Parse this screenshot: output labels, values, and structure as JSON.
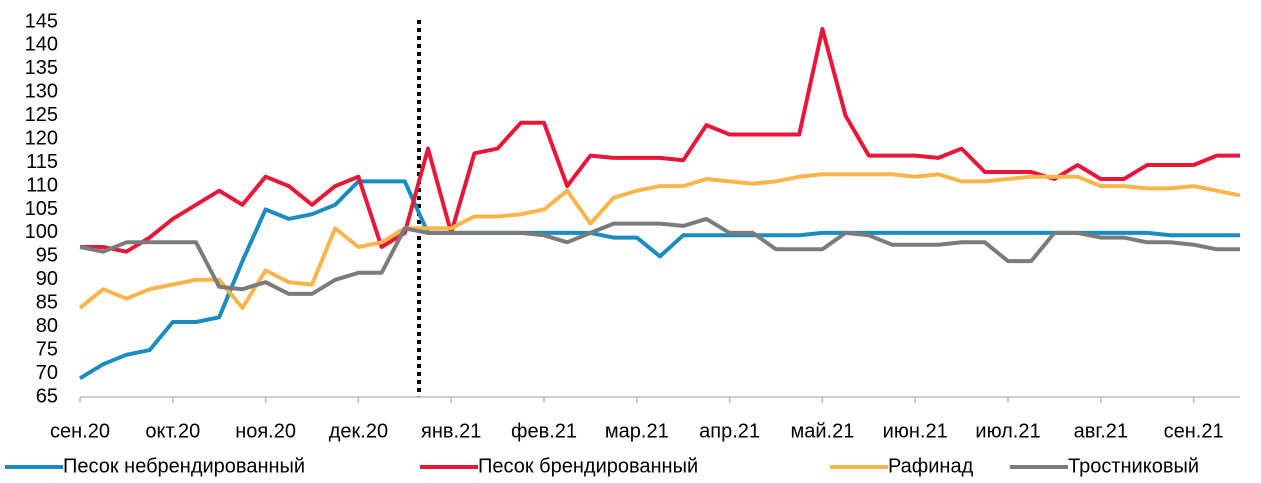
{
  "chart_data": {
    "type": "line",
    "categories": [
      "сен.20",
      null,
      null,
      null,
      "окт.20",
      null,
      null,
      null,
      "ноя.20",
      null,
      null,
      null,
      "дек.20",
      null,
      null,
      null,
      "янв.21",
      null,
      null,
      null,
      "фев.21",
      null,
      null,
      null,
      "мар.21",
      null,
      null,
      null,
      "апр.21",
      null,
      null,
      null,
      "май.21",
      null,
      null,
      null,
      "июн.21",
      null,
      null,
      null,
      "июл.21",
      null,
      null,
      null,
      "авг.21",
      null,
      null,
      null,
      "сен.21",
      null,
      null
    ],
    "series": [
      {
        "name": "Песок небрендированный",
        "color": "#1a8cc0",
        "values": [
          69,
          72,
          74,
          75,
          81,
          81,
          82,
          94,
          105,
          103,
          104,
          106,
          111,
          111,
          111,
          100,
          100,
          100,
          100,
          100,
          100,
          100,
          100,
          99,
          99,
          95,
          99.5,
          99.5,
          99.5,
          99.5,
          99.5,
          99.5,
          100,
          100,
          100,
          100,
          100,
          100,
          100,
          100,
          100,
          100,
          100,
          100,
          100,
          100,
          100,
          99.5,
          99.5,
          99.5,
          99.5
        ]
      },
      {
        "name": "Песок брендированный",
        "color": "#e8173a",
        "values": [
          97,
          97,
          96,
          99,
          103,
          106,
          109,
          106,
          112,
          110,
          106,
          110,
          112,
          97,
          100,
          118,
          100,
          117,
          118,
          123.5,
          123.5,
          110,
          116.5,
          116,
          116,
          116,
          115.5,
          123,
          121,
          121,
          121,
          121,
          143.5,
          125,
          116.5,
          116.5,
          116.5,
          116,
          118,
          113,
          113,
          113,
          111.5,
          114.5,
          111.5,
          111.5,
          114.5,
          114.5,
          114.5,
          116.5,
          116.5
        ]
      },
      {
        "name": "Рафинад",
        "color": "#f9b54c",
        "values": [
          84,
          88,
          86,
          88,
          89,
          90,
          90,
          84,
          92,
          89.5,
          89,
          101,
          97,
          98,
          101,
          101,
          101,
          103.5,
          103.5,
          104,
          105,
          109,
          102,
          107.5,
          109,
          110,
          110,
          111.5,
          111,
          110.5,
          111,
          112,
          112.5,
          112.5,
          112.5,
          112.5,
          112,
          112.5,
          111,
          111,
          111.5,
          112,
          112,
          112,
          110,
          110,
          109.5,
          109.5,
          110,
          109,
          108
        ]
      },
      {
        "name": "Тростниковый",
        "color": "#7b7b7b",
        "values": [
          97,
          96,
          98,
          98,
          98,
          98,
          88.5,
          88,
          89.5,
          87,
          87,
          90,
          91.5,
          91.5,
          101,
          100,
          100,
          100,
          100,
          100,
          99.5,
          98,
          100,
          102,
          102,
          102,
          101.5,
          103,
          100,
          100,
          96.5,
          96.5,
          96.5,
          100,
          99.5,
          97.5,
          97.5,
          97.5,
          98,
          98,
          94,
          94,
          100,
          100,
          99,
          99,
          98,
          98,
          97.5,
          96.5,
          96.5
        ]
      }
    ],
    "ylim": [
      65,
      145
    ],
    "yticks": [
      65,
      70,
      75,
      80,
      85,
      90,
      95,
      100,
      105,
      110,
      115,
      120,
      125,
      130,
      135,
      140,
      145
    ],
    "grid": false,
    "legend": "bottom"
  }
}
